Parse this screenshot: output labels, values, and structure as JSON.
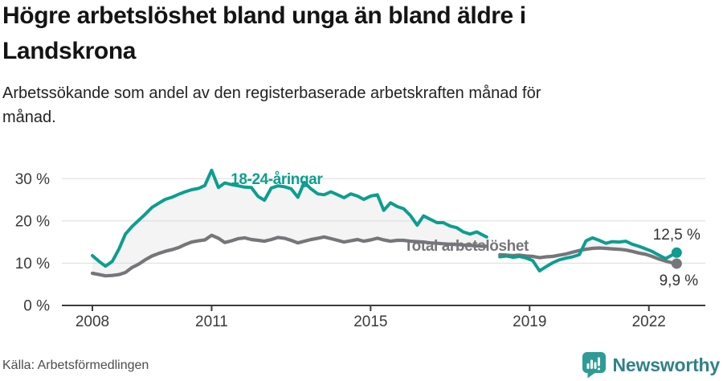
{
  "header": {
    "title": "Högre arbetslöshet bland unga än bland äldre i\nLandskrona",
    "subtitle": "Arbetssökande som andel av den registerbaserade arbetskraften månad för\nmånad."
  },
  "footer": {
    "source": "Källa: Arbetsförmedlingen",
    "brand": "Newsworthy",
    "logo_icon": "newsworthy-chart-bubble-icon"
  },
  "colors": {
    "young_line": "#0C9E8F",
    "total_line": "#76767A",
    "band_fill": "#F4F4F4",
    "grid_line": "#DBDBDB",
    "axis_line": "#3C3C3C",
    "tick_text": "#3A3A3A",
    "value_text": "#333333",
    "brand_icon": "#2E9C96",
    "brand_text": "#2F8289"
  },
  "chart_data": {
    "type": "line",
    "title": "Högre arbetslöshet bland unga än bland äldre i Landskrona",
    "subtitle": "Arbetssökande som andel av den registerbaserade arbetskraften månad för månad.",
    "unit": "%",
    "grid": "horizontal",
    "legend_position": "inline-labels",
    "x_ticks": [
      2008,
      2011,
      2015,
      2019,
      2022
    ],
    "y_ticks": [
      0,
      10,
      20,
      30
    ],
    "y_tick_suffix": " %",
    "ylim": [
      0,
      33
    ],
    "xlim": [
      2007.2,
      2023.4
    ],
    "series": [
      {
        "name": "18-24-åringar",
        "role": "young",
        "end_label": "12,5 %",
        "end_value": 12.5
      },
      {
        "name": "Total arbetslöshet",
        "role": "total",
        "end_label": "9,9 %",
        "end_value": 9.9
      }
    ],
    "segments": [
      {
        "x": [
          2008.0,
          2008.17,
          2008.33,
          2008.5,
          2008.67,
          2008.83,
          2009.0,
          2009.17,
          2009.33,
          2009.5,
          2009.67,
          2009.83,
          2010.0,
          2010.17,
          2010.33,
          2010.5,
          2010.67,
          2010.83,
          2011.0,
          2011.17,
          2011.33,
          2011.5,
          2011.67,
          2011.83,
          2012.0,
          2012.17,
          2012.33,
          2012.5,
          2012.67,
          2012.83,
          2013.0,
          2013.17,
          2013.33,
          2013.5,
          2013.67,
          2013.83,
          2014.0,
          2014.17,
          2014.33,
          2014.5,
          2014.67,
          2014.83,
          2015.0,
          2015.17,
          2015.33,
          2015.5,
          2015.67,
          2015.83,
          2016.0,
          2016.17,
          2016.33,
          2016.5,
          2016.67,
          2016.83,
          2017.0,
          2017.17,
          2017.33,
          2017.5,
          2017.67,
          2017.83,
          2017.92
        ],
        "young": [
          11.8,
          10.4,
          9.3,
          10.4,
          13.4,
          16.9,
          18.7,
          20.2,
          21.6,
          23.2,
          24.2,
          25.1,
          25.6,
          26.3,
          26.9,
          27.4,
          27.7,
          28.4,
          32.0,
          27.9,
          29.0,
          28.6,
          28.3,
          28.0,
          27.9,
          25.8,
          24.9,
          27.8,
          28.3,
          28.1,
          27.6,
          25.6,
          29.1,
          27.6,
          26.4,
          26.2,
          26.9,
          26.2,
          25.5,
          26.4,
          25.9,
          25.1,
          25.9,
          26.2,
          22.5,
          24.3,
          23.4,
          22.9,
          21.3,
          19.0,
          21.2,
          20.4,
          19.6,
          19.6,
          18.8,
          18.4,
          17.4,
          16.9,
          17.4,
          16.6,
          16.2
        ],
        "total": [
          7.6,
          7.3,
          7.0,
          7.1,
          7.3,
          7.8,
          9.0,
          9.8,
          10.8,
          11.7,
          12.3,
          12.8,
          13.2,
          13.7,
          14.4,
          15.0,
          15.3,
          15.5,
          16.6,
          15.9,
          14.9,
          15.3,
          15.8,
          16.0,
          15.6,
          15.4,
          15.2,
          15.6,
          16.1,
          15.9,
          15.4,
          14.8,
          15.2,
          15.6,
          15.9,
          16.2,
          15.8,
          15.4,
          15.0,
          15.3,
          15.6,
          15.2,
          15.5,
          15.9,
          15.5,
          15.2,
          15.4,
          15.4,
          15.2,
          15.1,
          15.0,
          14.8,
          14.7,
          14.6,
          14.5,
          14.4,
          14.3,
          14.2,
          14.1,
          14.0,
          14.0
        ]
      },
      {
        "x": [
          2018.25,
          2018.42,
          2018.58,
          2018.75,
          2018.92,
          2019.08,
          2019.25,
          2019.42,
          2019.58,
          2019.75,
          2019.92,
          2020.08,
          2020.25,
          2020.42,
          2020.58,
          2020.75,
          2020.92,
          2021.08,
          2021.25,
          2021.42,
          2021.58,
          2021.75,
          2021.92,
          2022.08,
          2022.25,
          2022.42,
          2022.58,
          2022.7
        ],
        "young": [
          11.5,
          11.7,
          11.4,
          11.6,
          11.2,
          10.6,
          8.2,
          9.2,
          10.1,
          10.8,
          11.2,
          11.5,
          12.0,
          15.3,
          16.0,
          15.4,
          14.7,
          15.1,
          15.0,
          15.2,
          14.5,
          14.0,
          13.4,
          12.8,
          11.9,
          11.1,
          11.9,
          12.5
        ],
        "total": [
          12.0,
          11.9,
          11.8,
          11.9,
          11.7,
          11.6,
          11.3,
          11.5,
          11.6,
          11.9,
          12.2,
          12.6,
          13.0,
          13.3,
          13.5,
          13.6,
          13.5,
          13.4,
          13.3,
          13.1,
          12.8,
          12.4,
          12.1,
          11.6,
          11.0,
          10.5,
          10.1,
          9.9
        ]
      }
    ],
    "annotations": [
      {
        "id": "young-series-label",
        "text": "18-24-åringar",
        "year": 2011.48,
        "value": 28.7,
        "style": "series",
        "color_key": "young"
      },
      {
        "id": "total-series-label",
        "text": "Total arbetslöshet",
        "year": 2015.84,
        "value": 12.95,
        "style": "series",
        "color_key": "total"
      },
      {
        "id": "young-end-value-label",
        "text": "12,5 %",
        "year": 2022.1,
        "value": 15.6,
        "style": "value"
      },
      {
        "id": "total-end-value-label",
        "text": "9,9 %",
        "year": 2022.26,
        "value": 4.75,
        "style": "value"
      }
    ]
  }
}
